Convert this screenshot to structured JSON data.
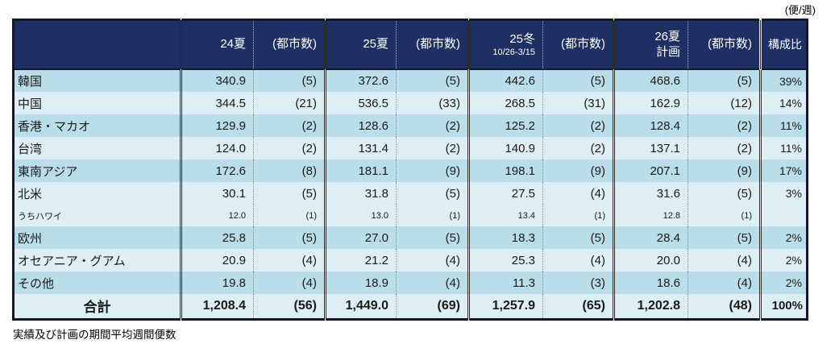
{
  "unit_label": "(便/週)",
  "footnote": "実績及び計画の期間平均週間便数",
  "colors": {
    "header_bg": "#1e2f63",
    "row_light": "#b9dde9",
    "row_pale": "#ddeef4",
    "border_dark": "#15152b"
  },
  "table": {
    "columns": [
      {
        "key": "region",
        "label": ""
      },
      {
        "key": "s24",
        "label": "24夏"
      },
      {
        "key": "s24_cities",
        "label": "(都市数)"
      },
      {
        "key": "s25",
        "label": "25夏"
      },
      {
        "key": "s25_cities",
        "label": "(都市数)"
      },
      {
        "key": "w25",
        "label": "25冬",
        "sublabel": "10/26-3/15"
      },
      {
        "key": "w25_cities",
        "label": "(都市数)"
      },
      {
        "key": "s26",
        "label": "26夏",
        "sublabel": "計画"
      },
      {
        "key": "s26_cities",
        "label": "(都市数)"
      },
      {
        "key": "share",
        "label": "構成比"
      }
    ],
    "rows": [
      {
        "label": "韓国",
        "shade": "a",
        "values": [
          "340.9",
          "(5)",
          "372.6",
          "(5)",
          "442.6",
          "(5)",
          "468.6",
          "(5)",
          "39%"
        ]
      },
      {
        "label": "中国",
        "shade": "b",
        "values": [
          "344.5",
          "(21)",
          "536.5",
          "(33)",
          "268.5",
          "(31)",
          "162.9",
          "(12)",
          "14%"
        ]
      },
      {
        "label": "香港・マカオ",
        "shade": "a",
        "values": [
          "129.9",
          "(2)",
          "128.6",
          "(2)",
          "125.2",
          "(2)",
          "128.4",
          "(2)",
          "11%"
        ]
      },
      {
        "label": "台湾",
        "shade": "b",
        "values": [
          "124.0",
          "(2)",
          "131.4",
          "(2)",
          "140.9",
          "(2)",
          "137.1",
          "(2)",
          "11%"
        ]
      },
      {
        "label": "東南アジア",
        "shade": "a",
        "values": [
          "172.6",
          "(8)",
          "181.1",
          "(9)",
          "198.1",
          "(9)",
          "207.1",
          "(9)",
          "17%"
        ]
      },
      {
        "label": "北米",
        "shade": "b",
        "values": [
          "30.1",
          "(5)",
          "31.8",
          "(5)",
          "27.5",
          "(4)",
          "31.6",
          "(5)",
          "3%"
        ]
      },
      {
        "label": "うちハワイ",
        "shade": "b",
        "small": true,
        "values": [
          "12.0",
          "(1)",
          "13.0",
          "(1)",
          "13.4",
          "(1)",
          "12.8",
          "(1)",
          ""
        ]
      },
      {
        "label": "欧州",
        "shade": "a",
        "values": [
          "25.8",
          "(5)",
          "27.0",
          "(5)",
          "18.3",
          "(5)",
          "28.4",
          "(5)",
          "2%"
        ]
      },
      {
        "label": "オセアニア・グアム",
        "shade": "b",
        "values": [
          "20.9",
          "(4)",
          "21.2",
          "(4)",
          "25.3",
          "(4)",
          "20.0",
          "(4)",
          "2%"
        ]
      },
      {
        "label": "その他",
        "shade": "a",
        "values": [
          "19.8",
          "(4)",
          "18.9",
          "(4)",
          "11.3",
          "(3)",
          "18.6",
          "(4)",
          "2%"
        ]
      }
    ],
    "total": {
      "label": "合計",
      "shade": "b",
      "values": [
        "1,208.4",
        "(56)",
        "1,449.0",
        "(69)",
        "1,257.9",
        "(65)",
        "1,202.8",
        "(48)",
        "100%"
      ]
    }
  }
}
